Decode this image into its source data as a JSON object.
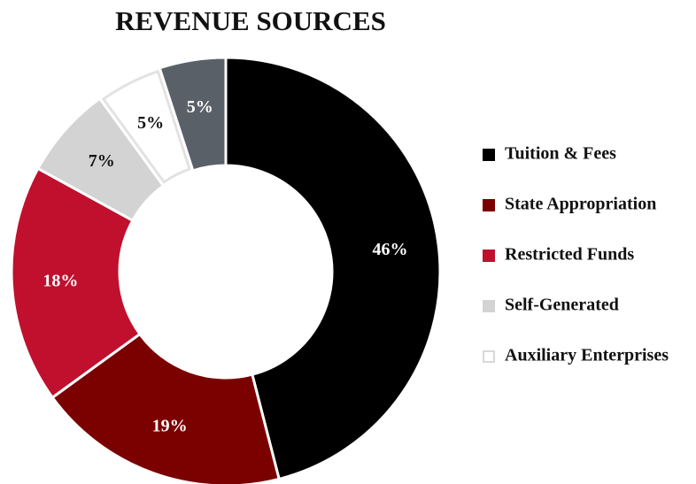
{
  "chart_data": {
    "type": "donut",
    "title": "REVENUE SOURCES",
    "series": [
      {
        "name": "Tuition & Fees",
        "color": "#000000",
        "values": [
          46
        ],
        "value_labels": [
          "46%"
        ]
      },
      {
        "name": "State Appropriation",
        "color": "#7b0000",
        "values": [
          19
        ],
        "value_labels": [
          "19%"
        ]
      },
      {
        "name": "Restricted Funds",
        "color": "#c0102e",
        "values": [
          18
        ],
        "value_labels": [
          "18%"
        ]
      },
      {
        "name": "Self-Generated",
        "color": "#d3d3d3",
        "values": [
          7
        ],
        "value_labels": [
          "7%"
        ]
      },
      {
        "name": "Auxiliary Enterprises",
        "color": "#ffffff",
        "values": [
          5
        ],
        "value_labels": [
          "5%"
        ]
      },
      {
        "name": null,
        "color": "#596068",
        "values": [
          5
        ],
        "value_labels": [
          "5%"
        ]
      }
    ]
  }
}
